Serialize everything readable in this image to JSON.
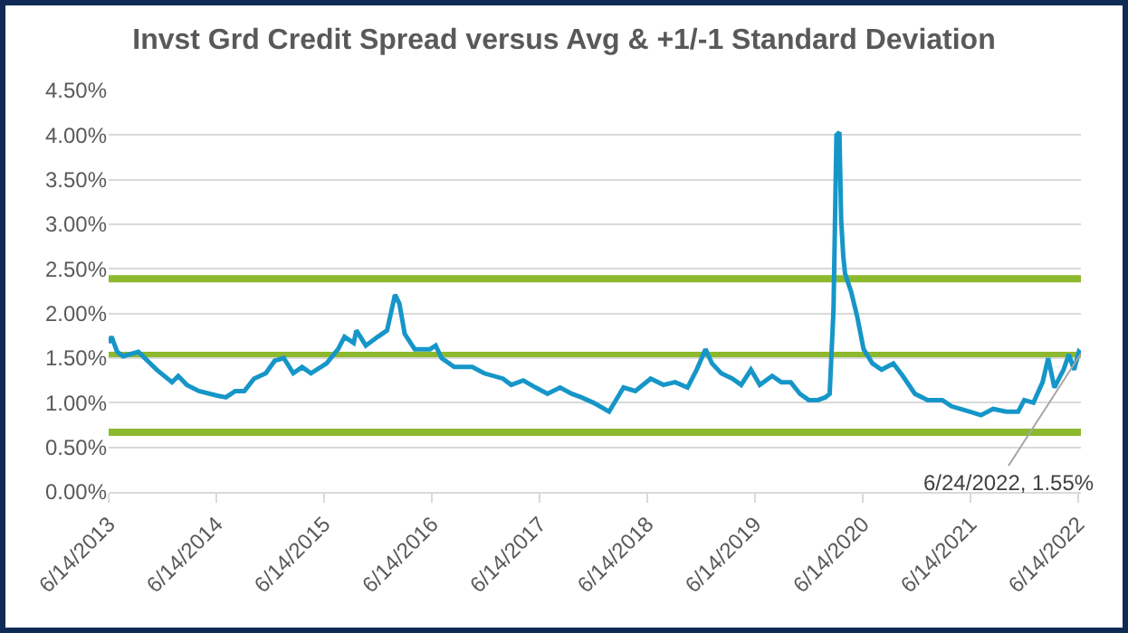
{
  "chart_data": {
    "type": "line",
    "title": "Invst Grd Credit Spread versus Avg & +1/-1 Standard Deviation",
    "x": [
      "2013-06-14",
      "2013-06-24",
      "2013-07-13",
      "2013-08-02",
      "2013-09-23",
      "2013-10-24",
      "2013-11-24",
      "2014-01-15",
      "2014-02-05",
      "2014-03-06",
      "2014-04-16",
      "2014-06-17",
      "2014-07-17",
      "2014-08-17",
      "2014-09-17",
      "2014-10-20",
      "2014-11-29",
      "2014-12-29",
      "2015-01-29",
      "2015-03-02",
      "2015-04-01",
      "2015-05-01",
      "2015-06-23",
      "2015-08-01",
      "2015-08-23",
      "2015-09-23",
      "2015-10-02",
      "2015-11-03",
      "2015-12-14",
      "2016-01-14",
      "2016-02-10",
      "2016-02-25",
      "2016-03-14",
      "2016-04-17",
      "2016-06-08",
      "2016-06-27",
      "2016-07-17",
      "2016-08-29",
      "2016-10-29",
      "2016-12-08",
      "2017-02-10",
      "2017-03-10",
      "2017-04-20",
      "2017-06-01",
      "2017-07-11",
      "2017-08-23",
      "2017-10-01",
      "2017-11-03",
      "2017-12-14",
      "2018-02-05",
      "2018-03-26",
      "2018-05-05",
      "2018-06-26",
      "2018-08-08",
      "2018-09-17",
      "2018-10-29",
      "2018-11-29",
      "2018-12-29",
      "2019-01-20",
      "2019-02-20",
      "2019-03-30",
      "2019-04-29",
      "2019-06-01",
      "2019-07-01",
      "2019-08-12",
      "2019-09-12",
      "2019-10-14",
      "2019-11-14",
      "2019-12-14",
      "2020-01-14",
      "2020-02-08",
      "2020-02-23",
      "2020-03-07",
      "2020-03-17",
      "2020-03-27",
      "2020-04-02",
      "2020-04-09",
      "2020-04-15",
      "2020-05-06",
      "2020-05-26",
      "2020-06-17",
      "2020-07-17",
      "2020-08-17",
      "2020-09-26",
      "2020-10-28",
      "2020-12-08",
      "2021-01-20",
      "2021-03-11",
      "2021-04-11",
      "2021-06-11",
      "2021-07-20",
      "2021-08-30",
      "2021-10-14",
      "2021-11-23",
      "2021-12-14",
      "2022-01-14",
      "2022-02-14",
      "2022-03-05",
      "2022-03-26",
      "2022-04-26",
      "2022-05-14",
      "2022-06-01",
      "2022-06-17",
      "2022-06-24"
    ],
    "series": [
      {
        "color": "#1696c8",
        "values": [
          1.67,
          1.74,
          1.57,
          1.52,
          1.57,
          1.47,
          1.37,
          1.23,
          1.3,
          1.2,
          1.13,
          1.08,
          1.06,
          1.13,
          1.13,
          1.27,
          1.33,
          1.47,
          1.5,
          1.33,
          1.4,
          1.33,
          1.44,
          1.6,
          1.74,
          1.67,
          1.81,
          1.64,
          1.74,
          1.81,
          2.21,
          2.11,
          1.77,
          1.6,
          1.6,
          1.64,
          1.5,
          1.4,
          1.4,
          1.33,
          1.27,
          1.2,
          1.25,
          1.17,
          1.1,
          1.17,
          1.1,
          1.06,
          1.0,
          0.9,
          1.17,
          1.13,
          1.27,
          1.2,
          1.23,
          1.17,
          1.37,
          1.6,
          1.44,
          1.33,
          1.27,
          1.2,
          1.37,
          1.2,
          1.3,
          1.23,
          1.23,
          1.1,
          1.03,
          1.03,
          1.06,
          1.1,
          2.04,
          4.0,
          4.03,
          3.05,
          2.65,
          2.45,
          2.24,
          1.97,
          1.6,
          1.44,
          1.37,
          1.44,
          1.3,
          1.1,
          1.03,
          1.03,
          0.96,
          0.9,
          0.86,
          0.93,
          0.9,
          0.9,
          1.03,
          1.0,
          1.23,
          1.5,
          1.17,
          1.37,
          1.54,
          1.37,
          1.57,
          1.55
        ]
      }
    ],
    "ref_lines": [
      {
        "axis": "y",
        "value": 2.39,
        "color": "#8db92e"
      },
      {
        "axis": "y",
        "value": 1.53,
        "color": "#8db92e"
      },
      {
        "axis": "y",
        "value": 0.67,
        "color": "#8db92e"
      }
    ],
    "annotations": [
      {
        "text": "6/24/2022, 1.55%",
        "x": "2022-06-24",
        "y": 1.55
      }
    ],
    "xlim": [
      "2013-06-14",
      "2022-06-24"
    ],
    "xticks": [
      {
        "value": "2013-06-14",
        "label": "6/14/2013"
      },
      {
        "value": "2014-06-14",
        "label": "6/14/2014"
      },
      {
        "value": "2015-06-14",
        "label": "6/14/2015"
      },
      {
        "value": "2016-06-14",
        "label": "6/14/2016"
      },
      {
        "value": "2017-06-14",
        "label": "6/14/2017"
      },
      {
        "value": "2018-06-14",
        "label": "6/14/2018"
      },
      {
        "value": "2019-06-14",
        "label": "6/14/2019"
      },
      {
        "value": "2020-06-14",
        "label": "6/14/2020"
      },
      {
        "value": "2021-06-14",
        "label": "6/14/2021"
      },
      {
        "value": "2022-06-14",
        "label": "6/14/2022"
      }
    ],
    "ylim": [
      0,
      4.5
    ],
    "yticks": [
      {
        "value": 0,
        "label": "0.00%"
      },
      {
        "value": 0.5,
        "label": "0.50%"
      },
      {
        "value": 1,
        "label": "1.00%"
      },
      {
        "value": 1.5,
        "label": "1.50%"
      },
      {
        "value": 2,
        "label": "2.00%"
      },
      {
        "value": 2.5,
        "label": "2.50%"
      },
      {
        "value": 3,
        "label": "3.00%"
      },
      {
        "value": 3.5,
        "label": "3.50%"
      },
      {
        "value": 4,
        "label": "4.00%"
      },
      {
        "value": 4.5,
        "label": "4.50%"
      }
    ],
    "grid": "y",
    "marker": "none",
    "line_style": "solid"
  }
}
